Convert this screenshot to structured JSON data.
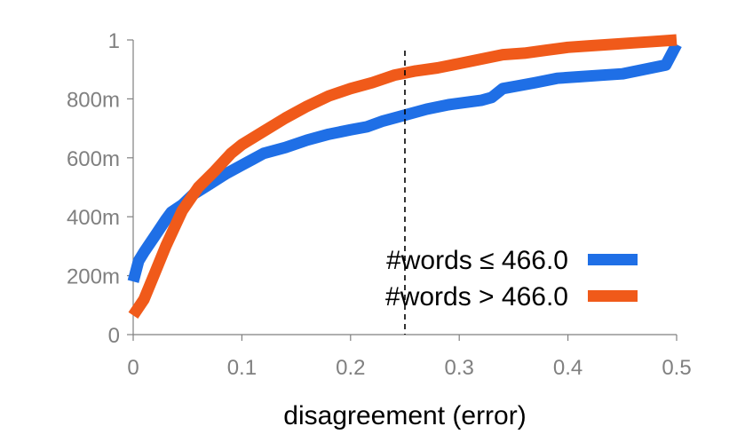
{
  "chart_data": {
    "type": "line",
    "title": "",
    "xlabel": "disagreement (error)",
    "ylabel": "",
    "xlim": [
      0,
      0.5
    ],
    "ylim": [
      0,
      1
    ],
    "x_ticks": [
      {
        "value": 0,
        "label": "0"
      },
      {
        "value": 0.1,
        "label": "0.1"
      },
      {
        "value": 0.2,
        "label": "0.2"
      },
      {
        "value": 0.3,
        "label": "0.3"
      },
      {
        "value": 0.4,
        "label": "0.4"
      },
      {
        "value": 0.5,
        "label": "0.5"
      }
    ],
    "y_ticks": [
      {
        "value": 0,
        "label": "0"
      },
      {
        "value": 0.2,
        "label": "200m"
      },
      {
        "value": 0.4,
        "label": "400m"
      },
      {
        "value": 0.6,
        "label": "600m"
      },
      {
        "value": 0.8,
        "label": "800m"
      },
      {
        "value": 1,
        "label": "1"
      }
    ],
    "grid": false,
    "legend_position": "bottom-right",
    "reference_line": {
      "x": 0.25,
      "style": "dashed",
      "color": "#000000"
    },
    "series": [
      {
        "name": "#words ≤ 466.0",
        "color": "#1f6fe6",
        "points": [
          [
            0.0,
            0.18
          ],
          [
            0.005,
            0.25
          ],
          [
            0.01,
            0.28
          ],
          [
            0.02,
            0.335
          ],
          [
            0.03,
            0.39
          ],
          [
            0.035,
            0.415
          ],
          [
            0.045,
            0.44
          ],
          [
            0.055,
            0.475
          ],
          [
            0.07,
            0.51
          ],
          [
            0.085,
            0.545
          ],
          [
            0.1,
            0.575
          ],
          [
            0.11,
            0.595
          ],
          [
            0.12,
            0.615
          ],
          [
            0.14,
            0.635
          ],
          [
            0.16,
            0.66
          ],
          [
            0.18,
            0.68
          ],
          [
            0.2,
            0.695
          ],
          [
            0.215,
            0.705
          ],
          [
            0.23,
            0.725
          ],
          [
            0.25,
            0.745
          ],
          [
            0.27,
            0.765
          ],
          [
            0.29,
            0.78
          ],
          [
            0.31,
            0.79
          ],
          [
            0.32,
            0.795
          ],
          [
            0.33,
            0.805
          ],
          [
            0.34,
            0.835
          ],
          [
            0.355,
            0.845
          ],
          [
            0.37,
            0.855
          ],
          [
            0.39,
            0.87
          ],
          [
            0.41,
            0.875
          ],
          [
            0.43,
            0.88
          ],
          [
            0.45,
            0.885
          ],
          [
            0.47,
            0.9
          ],
          [
            0.49,
            0.915
          ],
          [
            0.5,
            0.985
          ]
        ]
      },
      {
        "name": "#words > 466.0",
        "color": "#f05a1a",
        "points": [
          [
            0.0,
            0.065
          ],
          [
            0.01,
            0.12
          ],
          [
            0.02,
            0.21
          ],
          [
            0.03,
            0.3
          ],
          [
            0.045,
            0.42
          ],
          [
            0.06,
            0.5
          ],
          [
            0.075,
            0.555
          ],
          [
            0.09,
            0.615
          ],
          [
            0.1,
            0.645
          ],
          [
            0.12,
            0.69
          ],
          [
            0.14,
            0.735
          ],
          [
            0.16,
            0.775
          ],
          [
            0.18,
            0.81
          ],
          [
            0.2,
            0.835
          ],
          [
            0.22,
            0.855
          ],
          [
            0.24,
            0.88
          ],
          [
            0.26,
            0.895
          ],
          [
            0.28,
            0.905
          ],
          [
            0.3,
            0.92
          ],
          [
            0.32,
            0.935
          ],
          [
            0.34,
            0.95
          ],
          [
            0.36,
            0.955
          ],
          [
            0.38,
            0.965
          ],
          [
            0.4,
            0.975
          ],
          [
            0.42,
            0.98
          ],
          [
            0.44,
            0.985
          ],
          [
            0.46,
            0.99
          ],
          [
            0.48,
            0.995
          ],
          [
            0.5,
            1.0
          ]
        ]
      }
    ]
  }
}
